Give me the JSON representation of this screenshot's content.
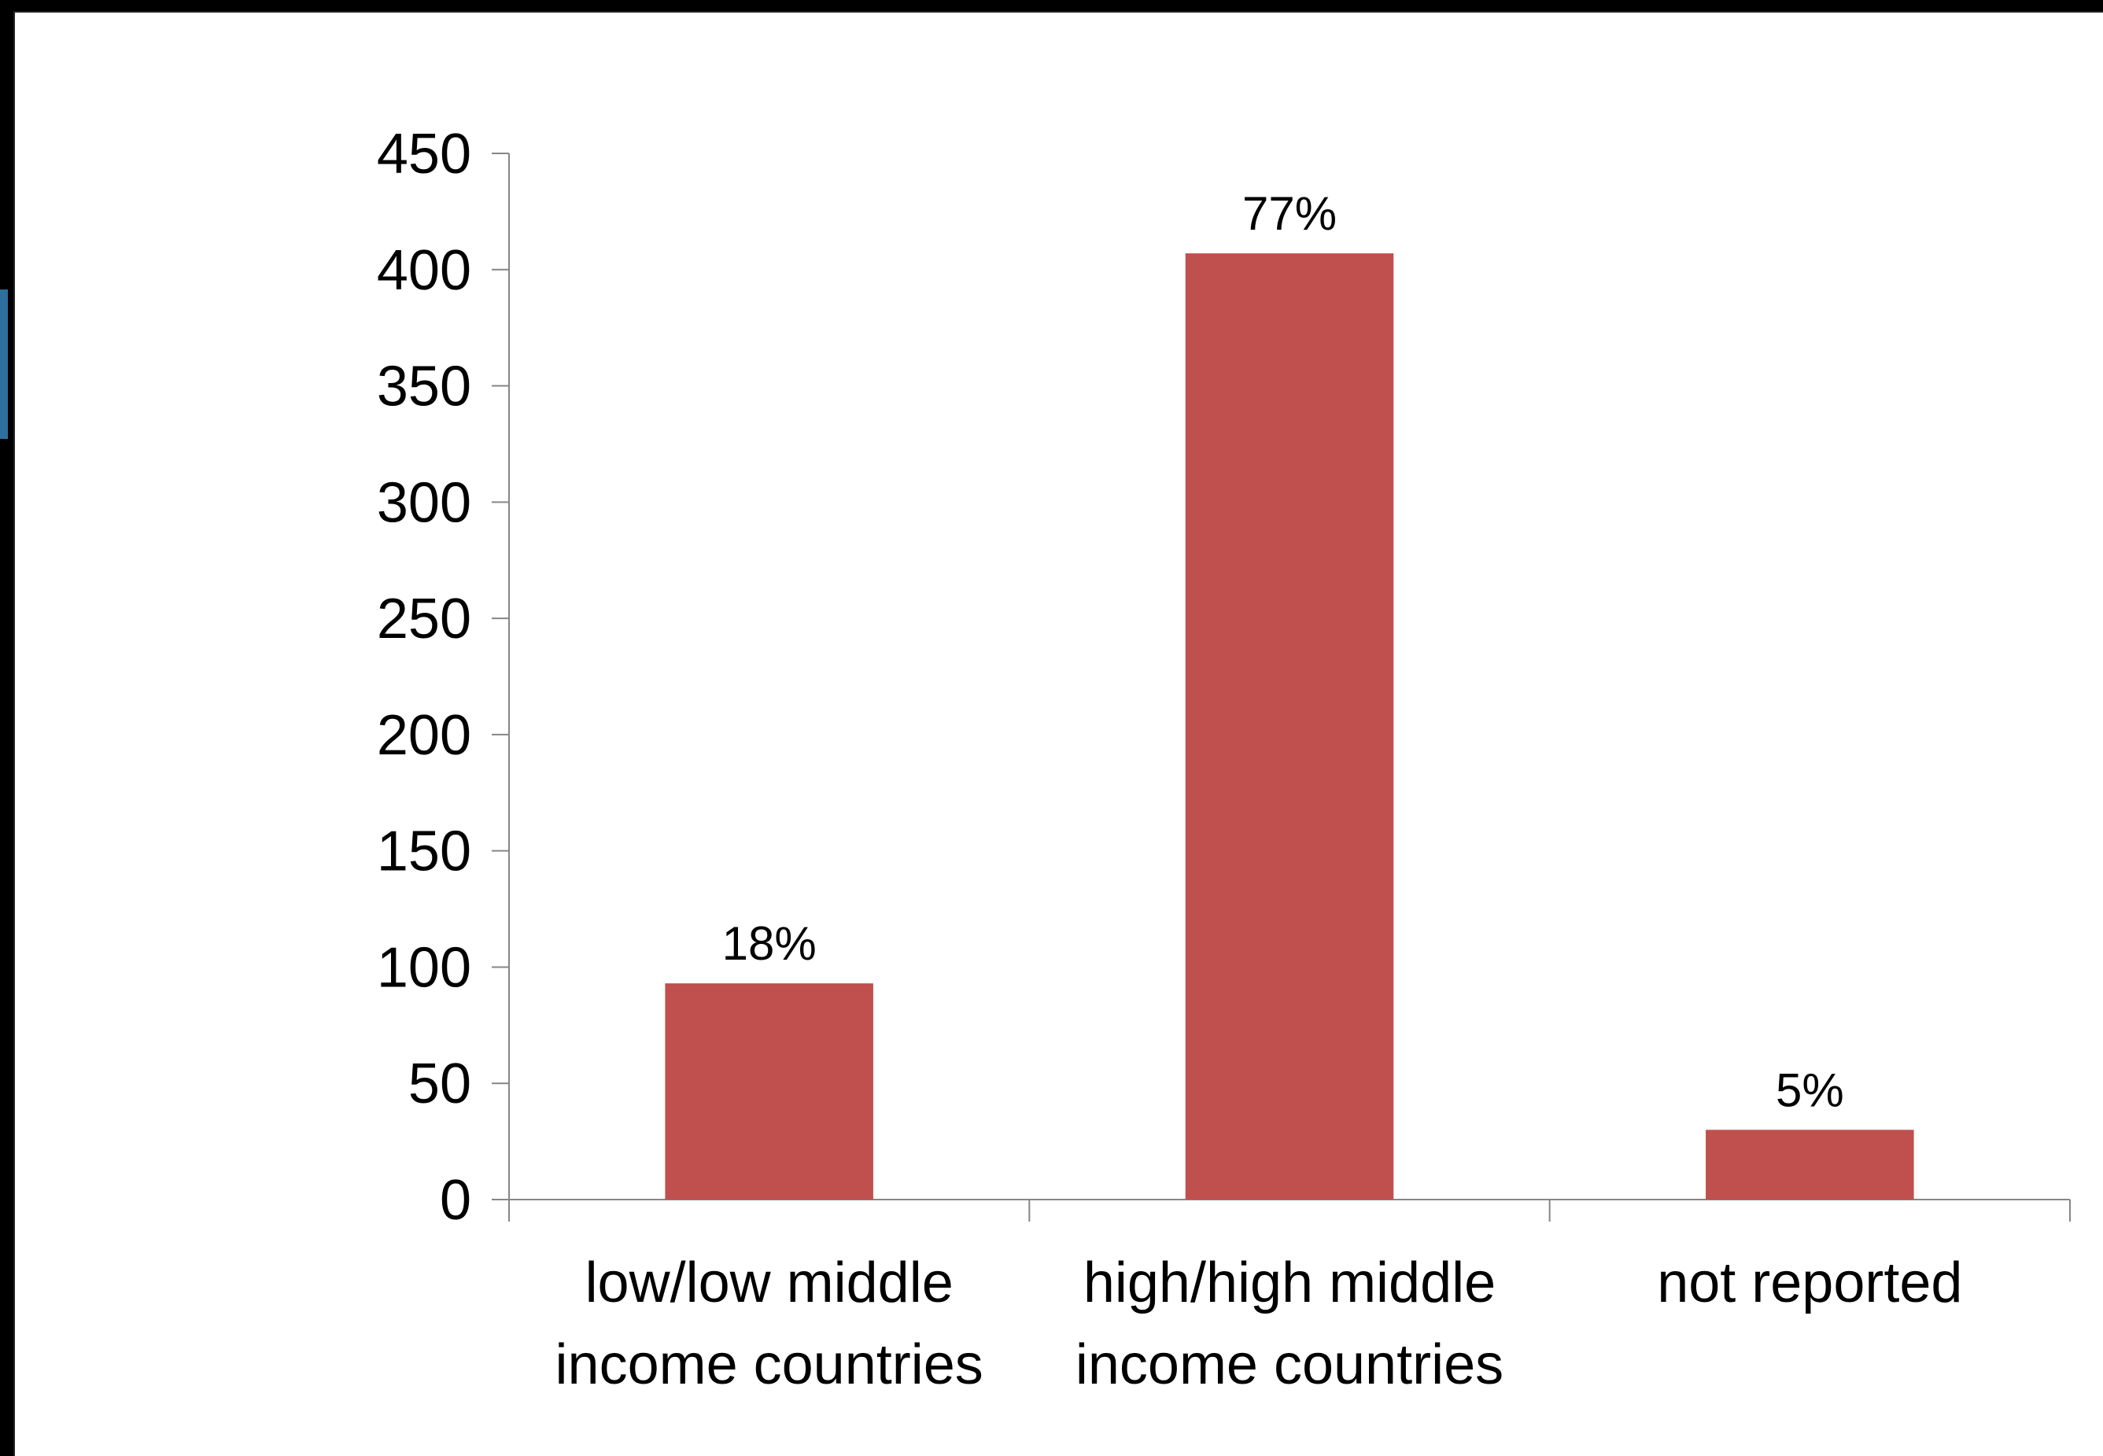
{
  "chart_data": {
    "type": "bar",
    "title": "",
    "xlabel": "",
    "ylabel": "",
    "categories": [
      [
        "low/low middle",
        "income countries"
      ],
      [
        "high/high middle",
        "income countries"
      ],
      [
        "not reported"
      ]
    ],
    "values": [
      93,
      407,
      30
    ],
    "data_labels": [
      "18%",
      "77%",
      "5%"
    ],
    "ylim": [
      0,
      450
    ],
    "yticks": [
      0,
      50,
      100,
      150,
      200,
      250,
      300,
      350,
      400,
      450
    ],
    "grid": false,
    "legend": "none",
    "bar_color": "#c0504d",
    "axis_color": "#868686"
  }
}
